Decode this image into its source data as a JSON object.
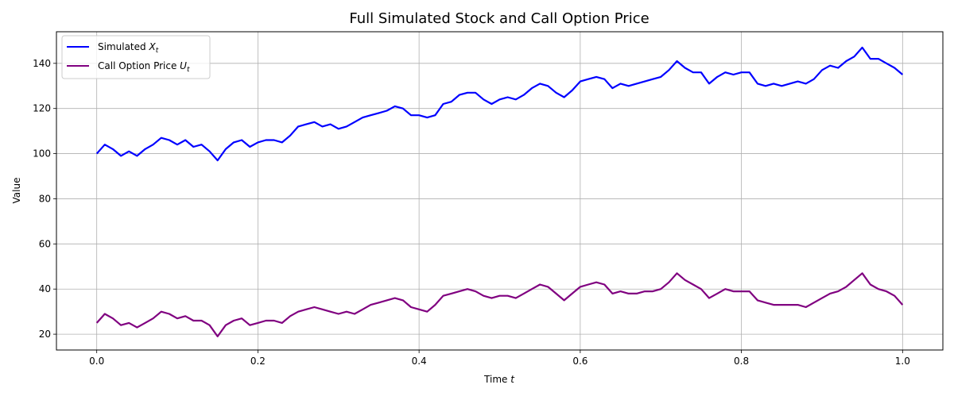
{
  "chart_data": {
    "type": "line",
    "title": "Full Simulated Stock and Call Option Price",
    "xlabel": "Time t",
    "ylabel": "Value",
    "xlim": [
      -0.05,
      1.05
    ],
    "ylim": [
      13,
      154
    ],
    "xticks": [
      0.0,
      0.2,
      0.4,
      0.6,
      0.8,
      1.0
    ],
    "xtick_labels": [
      "0.0",
      "0.2",
      "0.4",
      "0.6",
      "0.8",
      "1.0"
    ],
    "yticks": [
      20,
      40,
      60,
      80,
      100,
      120,
      140
    ],
    "ytick_labels": [
      "20",
      "40",
      "60",
      "80",
      "100",
      "120",
      "140"
    ],
    "grid": true,
    "legend_position": "top-left",
    "series": [
      {
        "name": "Simulated X_t",
        "legend_main": "Simulated ",
        "legend_sym": "X",
        "legend_sub": "t",
        "color": "#0000ff",
        "x": [
          0.0,
          0.01,
          0.02,
          0.03,
          0.04,
          0.05,
          0.06,
          0.07,
          0.08,
          0.09,
          0.1,
          0.11,
          0.12,
          0.13,
          0.14,
          0.15,
          0.16,
          0.17,
          0.18,
          0.19,
          0.2,
          0.21,
          0.22,
          0.23,
          0.24,
          0.25,
          0.26,
          0.27,
          0.28,
          0.29,
          0.3,
          0.31,
          0.32,
          0.33,
          0.34,
          0.35,
          0.36,
          0.37,
          0.38,
          0.39,
          0.4,
          0.41,
          0.42,
          0.43,
          0.44,
          0.45,
          0.46,
          0.47,
          0.48,
          0.49,
          0.5,
          0.51,
          0.52,
          0.53,
          0.54,
          0.55,
          0.56,
          0.57,
          0.58,
          0.59,
          0.6,
          0.61,
          0.62,
          0.63,
          0.64,
          0.65,
          0.66,
          0.67,
          0.68,
          0.69,
          0.7,
          0.71,
          0.72,
          0.73,
          0.74,
          0.75,
          0.76,
          0.77,
          0.78,
          0.79,
          0.8,
          0.81,
          0.82,
          0.83,
          0.84,
          0.85,
          0.86,
          0.87,
          0.88,
          0.89,
          0.9,
          0.91,
          0.92,
          0.93,
          0.94,
          0.95,
          0.96,
          0.97,
          0.98,
          0.99,
          1.0
        ],
        "values": [
          100,
          104,
          102,
          99,
          101,
          99,
          102,
          104,
          107,
          106,
          104,
          106,
          103,
          104,
          101,
          97,
          102,
          105,
          106,
          103,
          105,
          106,
          106,
          105,
          108,
          112,
          113,
          114,
          112,
          113,
          111,
          112,
          114,
          116,
          117,
          118,
          119,
          121,
          120,
          117,
          117,
          116,
          117,
          122,
          123,
          126,
          127,
          127,
          124,
          122,
          124,
          125,
          124,
          126,
          129,
          131,
          130,
          127,
          125,
          128,
          132,
          133,
          134,
          133,
          129,
          131,
          130,
          131,
          132,
          133,
          134,
          137,
          141,
          138,
          136,
          136,
          131,
          134,
          136,
          135,
          136,
          136,
          131,
          130,
          131,
          130,
          131,
          132,
          131,
          133,
          137,
          139,
          138,
          141,
          143,
          147,
          142,
          142,
          140,
          138,
          135
        ]
      },
      {
        "name": "Call Option Price U_t",
        "legend_main": "Call Option Price ",
        "legend_sym": "U",
        "legend_sub": "t",
        "color": "#800080",
        "x": [
          0.0,
          0.01,
          0.02,
          0.03,
          0.04,
          0.05,
          0.06,
          0.07,
          0.08,
          0.09,
          0.1,
          0.11,
          0.12,
          0.13,
          0.14,
          0.15,
          0.16,
          0.17,
          0.18,
          0.19,
          0.2,
          0.21,
          0.22,
          0.23,
          0.24,
          0.25,
          0.26,
          0.27,
          0.28,
          0.29,
          0.3,
          0.31,
          0.32,
          0.33,
          0.34,
          0.35,
          0.36,
          0.37,
          0.38,
          0.39,
          0.4,
          0.41,
          0.42,
          0.43,
          0.44,
          0.45,
          0.46,
          0.47,
          0.48,
          0.49,
          0.5,
          0.51,
          0.52,
          0.53,
          0.54,
          0.55,
          0.56,
          0.57,
          0.58,
          0.59,
          0.6,
          0.61,
          0.62,
          0.63,
          0.64,
          0.65,
          0.66,
          0.67,
          0.68,
          0.69,
          0.7,
          0.71,
          0.72,
          0.73,
          0.74,
          0.75,
          0.76,
          0.77,
          0.78,
          0.79,
          0.8,
          0.81,
          0.82,
          0.83,
          0.84,
          0.85,
          0.86,
          0.87,
          0.88,
          0.89,
          0.9,
          0.91,
          0.92,
          0.93,
          0.94,
          0.95,
          0.96,
          0.97,
          0.98,
          0.99,
          1.0
        ],
        "values": [
          25,
          29,
          27,
          24,
          25,
          23,
          25,
          27,
          30,
          29,
          27,
          28,
          26,
          26,
          24,
          19,
          24,
          26,
          27,
          24,
          25,
          26,
          26,
          25,
          28,
          30,
          31,
          32,
          31,
          30,
          29,
          30,
          29,
          31,
          33,
          34,
          35,
          36,
          35,
          32,
          31,
          30,
          33,
          37,
          38,
          39,
          40,
          39,
          37,
          36,
          37,
          37,
          36,
          38,
          40,
          42,
          41,
          38,
          35,
          38,
          41,
          42,
          43,
          42,
          38,
          39,
          38,
          38,
          39,
          39,
          40,
          43,
          47,
          44,
          42,
          40,
          36,
          38,
          40,
          39,
          39,
          39,
          35,
          34,
          33,
          33,
          33,
          33,
          32,
          34,
          36,
          38,
          39,
          41,
          44,
          47,
          42,
          40,
          39,
          37,
          33
        ]
      }
    ]
  }
}
